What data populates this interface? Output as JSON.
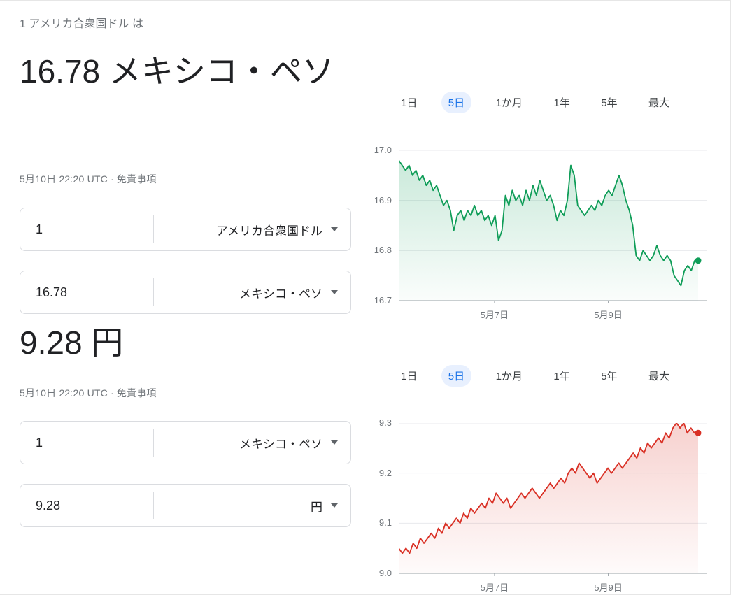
{
  "header": {
    "lead": "1 アメリカ合衆国ドル は"
  },
  "converters": [
    {
      "result": "16.78 メキシコ・ペソ",
      "timestamp": "5月10日 22:20 UTC",
      "dot": "·",
      "disclaimer": "免責事項",
      "rows": [
        {
          "value": "1",
          "currency": "アメリカ合衆国ドル"
        },
        {
          "value": "16.78",
          "currency": "メキシコ・ペソ"
        }
      ]
    },
    {
      "result": "9.28 円",
      "timestamp": "5月10日 22:20 UTC",
      "dot": "·",
      "disclaimer": "免責事項",
      "rows": [
        {
          "value": "1",
          "currency": "メキシコ・ペソ"
        },
        {
          "value": "9.28",
          "currency": "円"
        }
      ]
    }
  ],
  "chart_data": [
    {
      "type": "line",
      "ranges": [
        "1日",
        "5日",
        "1か月",
        "1年",
        "5年",
        "最大"
      ],
      "selected_range": "5日",
      "color": "#0f9d58",
      "ylim": [
        16.7,
        17.0
      ],
      "yticks": [
        "17.0",
        "16.9",
        "16.8",
        "16.7"
      ],
      "xticks": [
        {
          "label": "5月7日",
          "pos": 0.32
        },
        {
          "label": "5月9日",
          "pos": 0.7
        }
      ],
      "end_value": 16.78,
      "values": [
        16.98,
        16.97,
        16.96,
        16.97,
        16.95,
        16.96,
        16.94,
        16.95,
        16.93,
        16.94,
        16.92,
        16.93,
        16.91,
        16.89,
        16.9,
        16.88,
        16.84,
        16.87,
        16.88,
        16.86,
        16.88,
        16.87,
        16.89,
        16.87,
        16.88,
        16.86,
        16.87,
        16.85,
        16.87,
        16.82,
        16.84,
        16.91,
        16.89,
        16.92,
        16.9,
        16.91,
        16.89,
        16.92,
        16.9,
        16.93,
        16.91,
        16.94,
        16.92,
        16.9,
        16.91,
        16.89,
        16.86,
        16.88,
        16.87,
        16.9,
        16.97,
        16.95,
        16.89,
        16.88,
        16.87,
        16.88,
        16.89,
        16.88,
        16.9,
        16.89,
        16.91,
        16.92,
        16.91,
        16.93,
        16.95,
        16.93,
        16.9,
        16.88,
        16.85,
        16.79,
        16.78,
        16.8,
        16.79,
        16.78,
        16.79,
        16.81,
        16.79,
        16.78,
        16.79,
        16.78,
        16.75,
        16.74,
        16.73,
        16.76,
        16.77,
        16.76,
        16.78,
        16.78
      ]
    },
    {
      "type": "line",
      "ranges": [
        "1日",
        "5日",
        "1か月",
        "1年",
        "5年",
        "最大"
      ],
      "selected_range": "5日",
      "color": "#d93025",
      "ylim": [
        9.0,
        9.3
      ],
      "yticks": [
        "9.3",
        "9.2",
        "9.1",
        "9.0"
      ],
      "xticks": [
        {
          "label": "5月7日",
          "pos": 0.32
        },
        {
          "label": "5月9日",
          "pos": 0.7
        }
      ],
      "end_value": 9.28,
      "values": [
        9.05,
        9.04,
        9.05,
        9.04,
        9.06,
        9.05,
        9.07,
        9.06,
        9.07,
        9.08,
        9.07,
        9.09,
        9.08,
        9.1,
        9.09,
        9.1,
        9.11,
        9.1,
        9.12,
        9.11,
        9.13,
        9.12,
        9.13,
        9.14,
        9.13,
        9.15,
        9.14,
        9.16,
        9.15,
        9.14,
        9.15,
        9.13,
        9.14,
        9.15,
        9.16,
        9.15,
        9.16,
        9.17,
        9.16,
        9.15,
        9.16,
        9.17,
        9.18,
        9.17,
        9.18,
        9.19,
        9.18,
        9.2,
        9.21,
        9.2,
        9.22,
        9.21,
        9.2,
        9.19,
        9.2,
        9.18,
        9.19,
        9.2,
        9.21,
        9.2,
        9.21,
        9.22,
        9.21,
        9.22,
        9.23,
        9.24,
        9.23,
        9.25,
        9.24,
        9.26,
        9.25,
        9.26,
        9.27,
        9.26,
        9.28,
        9.27,
        9.29,
        9.3,
        9.29,
        9.3,
        9.28,
        9.29,
        9.28,
        9.28
      ]
    }
  ]
}
